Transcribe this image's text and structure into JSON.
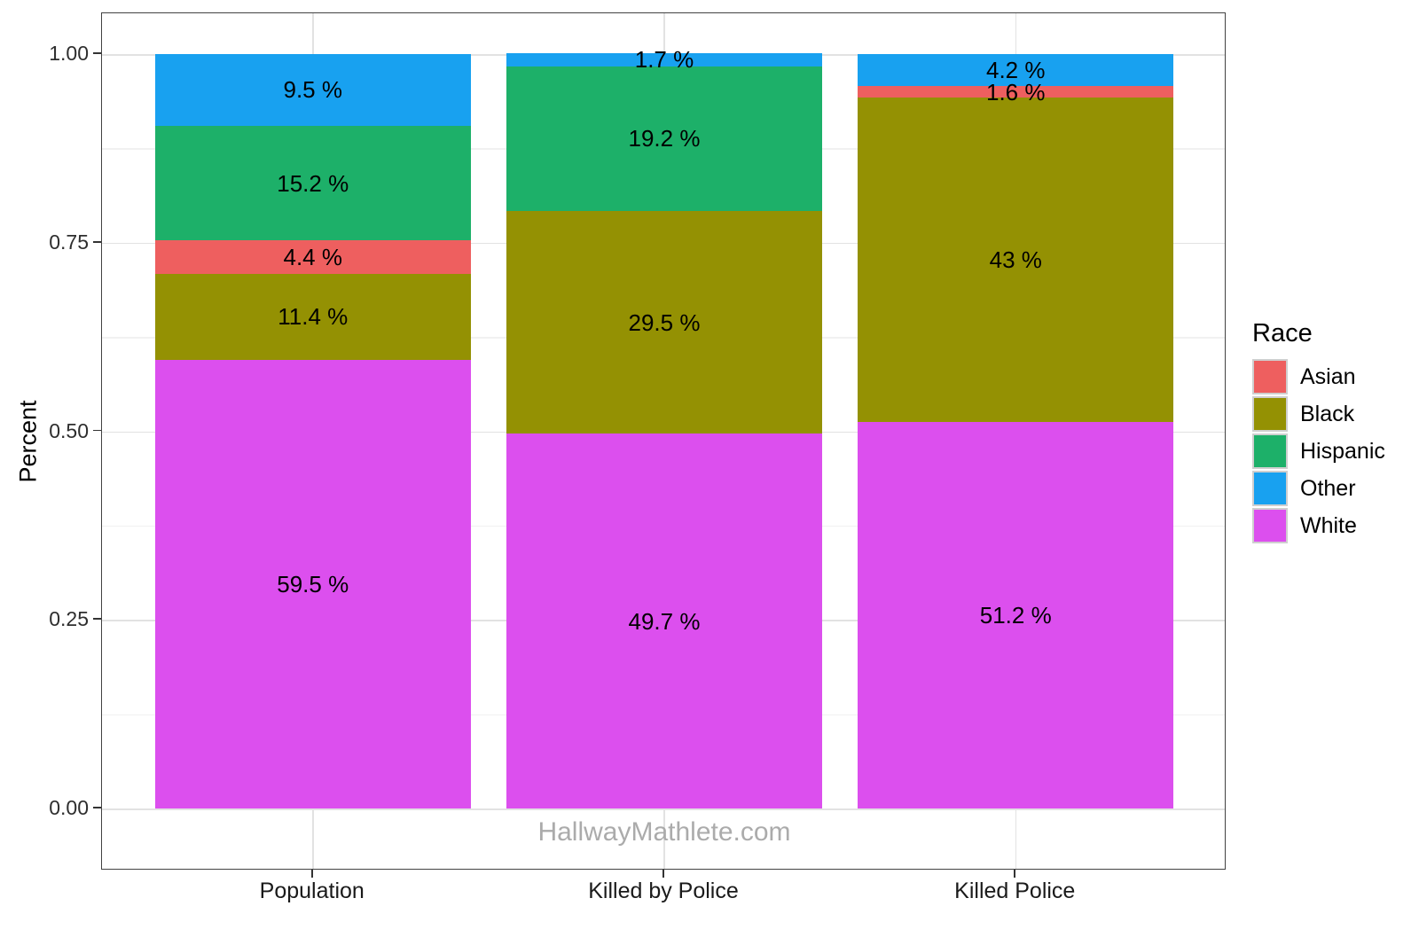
{
  "chart_data": {
    "type": "bar",
    "stacked": true,
    "percent_scale": true,
    "ylabel": "Percent",
    "xlabel": "",
    "ylim": [
      0,
      1
    ],
    "grid": "on",
    "legend_position": "right",
    "watermark": "HallwayMathlete.com",
    "y_major_ticks": [
      {
        "value": 0.0,
        "label": "0.00"
      },
      {
        "value": 0.25,
        "label": "0.25"
      },
      {
        "value": 0.5,
        "label": "0.50"
      },
      {
        "value": 0.75,
        "label": "0.75"
      },
      {
        "value": 1.0,
        "label": "1.00"
      }
    ],
    "y_minor_ticks": [
      0.125,
      0.375,
      0.625,
      0.875
    ],
    "categories": [
      "Population",
      "Killed by Police",
      "Killed Police"
    ],
    "stack_order_bottom_to_top": [
      "White",
      "Black",
      "Asian",
      "Hispanic",
      "Other"
    ],
    "colors": {
      "Asian": "#ee5f5f",
      "Black": "#949103",
      "Hispanic": "#1db069",
      "Other": "#18a1f0",
      "White": "#dc4fee"
    },
    "bars": [
      {
        "category": "Population",
        "segments": [
          {
            "race": "White",
            "value": 59.5,
            "label": "59.5 %"
          },
          {
            "race": "Black",
            "value": 11.4,
            "label": "11.4 %"
          },
          {
            "race": "Asian",
            "value": 4.4,
            "label": "4.4 %"
          },
          {
            "race": "Hispanic",
            "value": 15.2,
            "label": "15.2 %"
          },
          {
            "race": "Other",
            "value": 9.5,
            "label": "9.5 %"
          }
        ]
      },
      {
        "category": "Killed by Police",
        "segments": [
          {
            "race": "White",
            "value": 49.7,
            "label": "49.7 %"
          },
          {
            "race": "Black",
            "value": 29.5,
            "label": "29.5 %"
          },
          {
            "race": "Hispanic",
            "value": 19.2,
            "label": "19.2 %"
          },
          {
            "race": "Other",
            "value": 1.7,
            "label": "1.7 %"
          }
        ]
      },
      {
        "category": "Killed Police",
        "segments": [
          {
            "race": "White",
            "value": 51.2,
            "label": "51.2 %"
          },
          {
            "race": "Black",
            "value": 43,
            "label": "43 %"
          },
          {
            "race": "Asian",
            "value": 1.6,
            "label": "1.6 %"
          },
          {
            "race": "Other",
            "value": 4.2,
            "label": "4.2 %"
          }
        ]
      }
    ],
    "legend": {
      "title": "Race",
      "entries": [
        {
          "label": "Asian",
          "color": "#ee5f5f"
        },
        {
          "label": "Black",
          "color": "#949103"
        },
        {
          "label": "Hispanic",
          "color": "#1db069"
        },
        {
          "label": "Other",
          "color": "#18a1f0"
        },
        {
          "label": "White",
          "color": "#dc4fee"
        }
      ]
    }
  }
}
